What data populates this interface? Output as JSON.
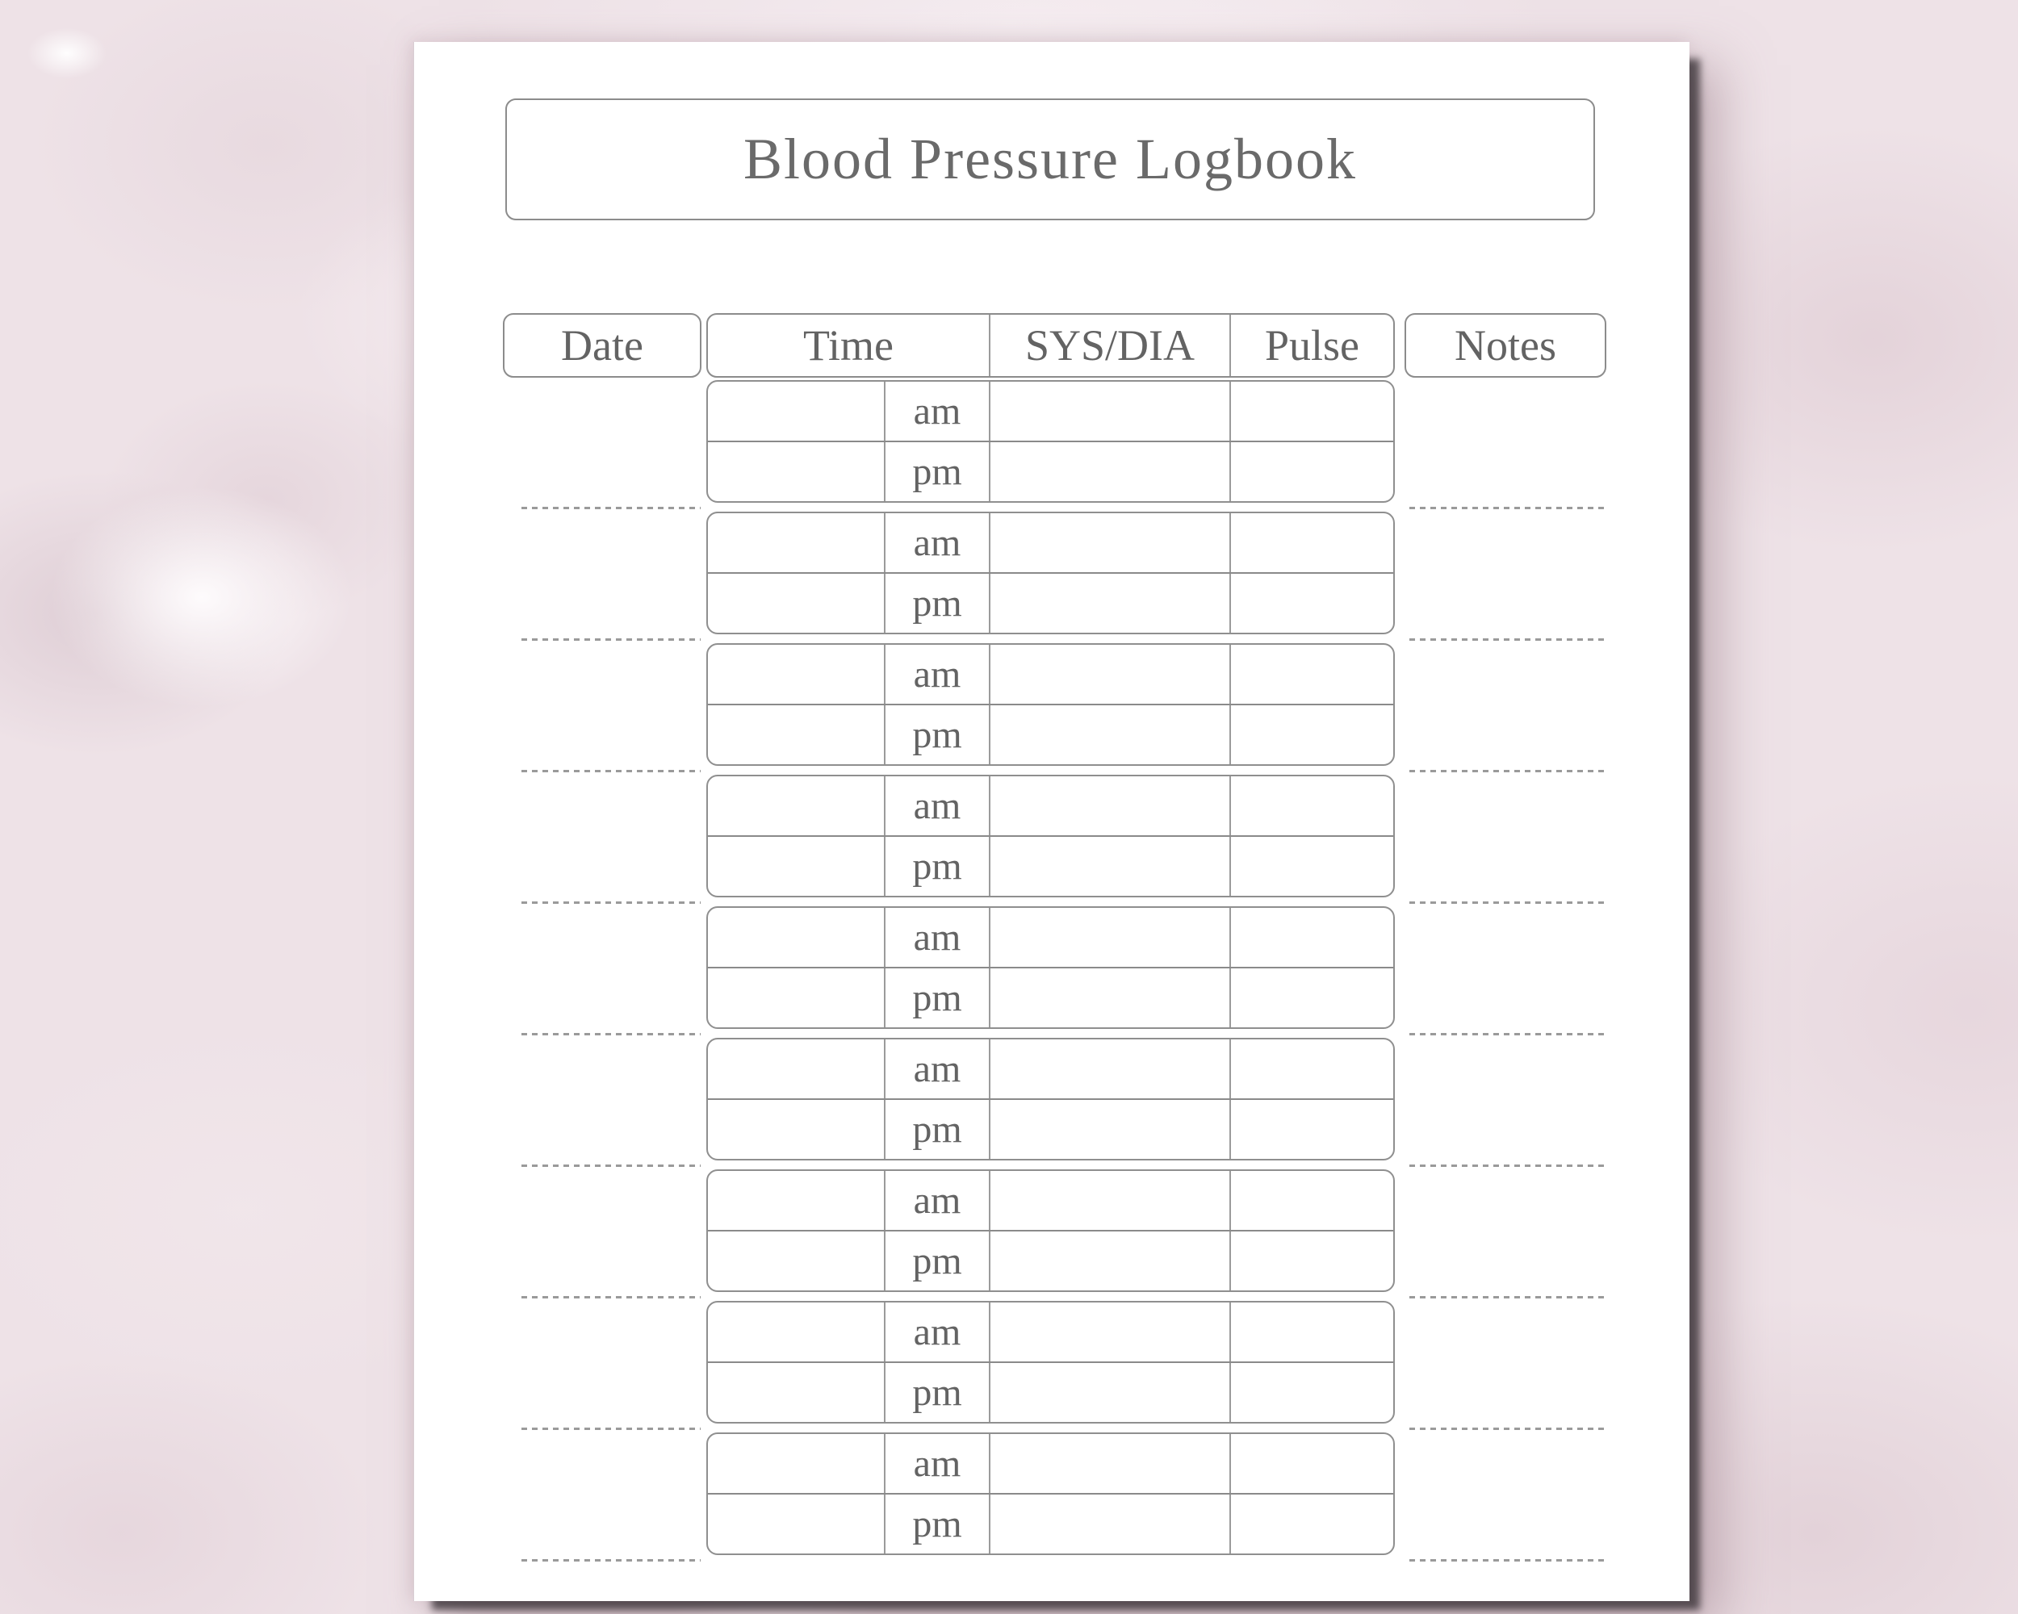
{
  "document": {
    "title": "Blood Pressure Logbook",
    "columns": {
      "date": "Date",
      "time": "Time",
      "sys_dia": "SYS/DIA",
      "pulse": "Pulse",
      "notes": "Notes"
    },
    "day_count": 9,
    "days": [
      {
        "am": "am",
        "pm": "pm"
      },
      {
        "am": "am",
        "pm": "pm"
      },
      {
        "am": "am",
        "pm": "pm"
      },
      {
        "am": "am",
        "pm": "pm"
      },
      {
        "am": "am",
        "pm": "pm"
      },
      {
        "am": "am",
        "pm": "pm"
      },
      {
        "am": "am",
        "pm": "pm"
      },
      {
        "am": "am",
        "pm": "pm"
      },
      {
        "am": "am",
        "pm": "pm"
      }
    ],
    "colors": {
      "background": "#eee2e7",
      "paper": "#ffffff",
      "border": "#8c8c8c",
      "grid_line": "#9b9b9b",
      "divider": "#8a8a8a",
      "text": "#6a6a6a",
      "dotted": "#9a9a9a",
      "shadow": "#3f383c"
    }
  }
}
